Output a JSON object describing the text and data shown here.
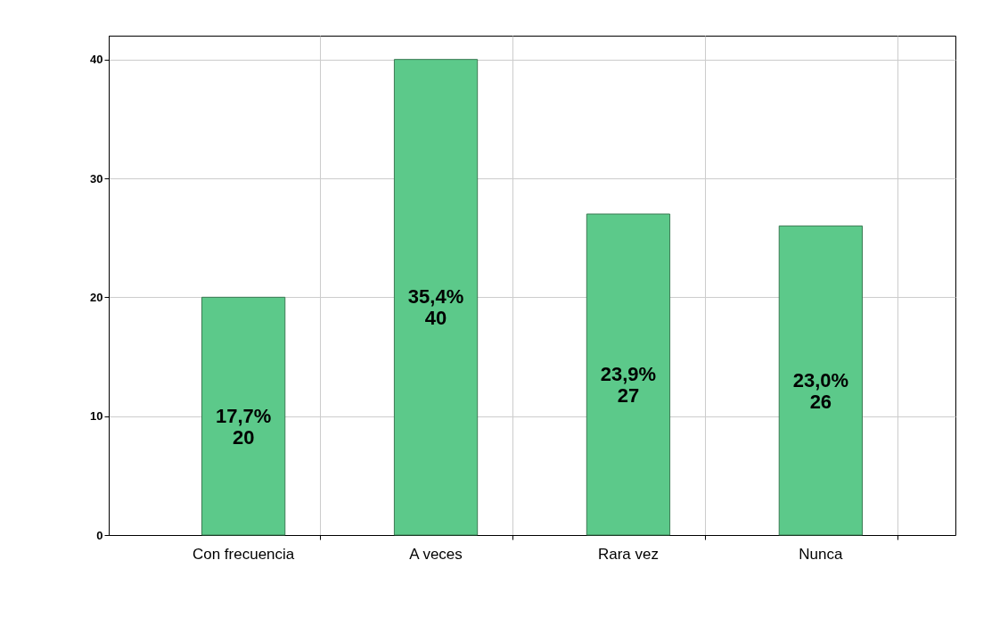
{
  "chart_data": {
    "type": "bar",
    "categories": [
      "Con frecuencia",
      "A veces",
      "Rara vez",
      "Nunca"
    ],
    "values": [
      20,
      40,
      27,
      26
    ],
    "color": "#5cc98a",
    "value_labels": [
      "17,7%\n20",
      "35,4%\n40",
      "23,9%\n27",
      "23,0%\n26"
    ],
    "ylim": [
      0,
      42
    ],
    "yticks": [
      0,
      10,
      20,
      30,
      40
    ],
    "grid": true
  }
}
